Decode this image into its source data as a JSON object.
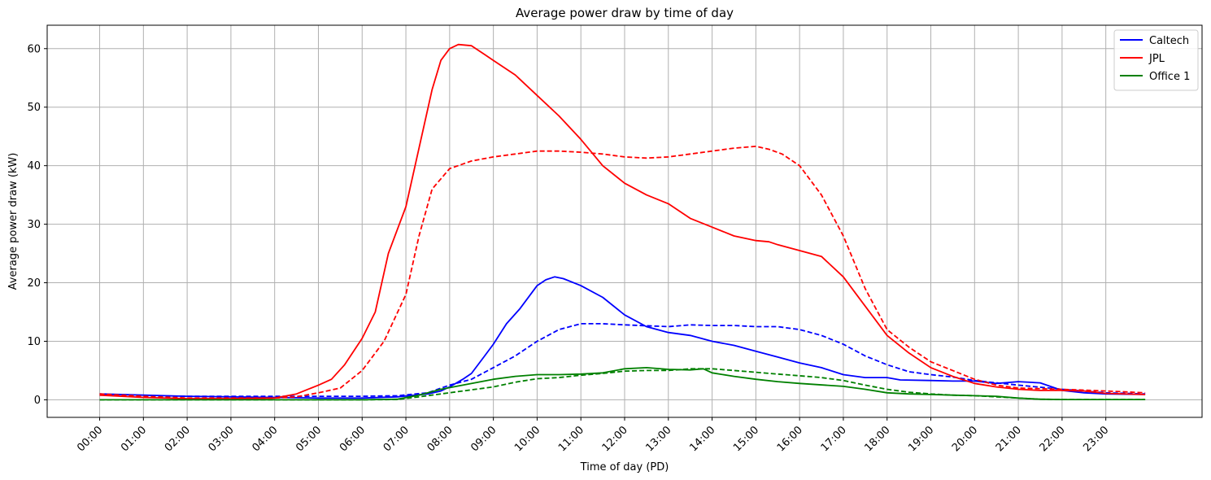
{
  "chart_data": {
    "type": "line",
    "title": "Average power draw by time of day",
    "xlabel": "Time of day (PD)",
    "ylabel": "Average power draw (kW)",
    "x_tick_labels": [
      "00:00",
      "01:00",
      "02:00",
      "03:00",
      "04:00",
      "05:00",
      "06:00",
      "07:00",
      "08:00",
      "09:00",
      "10:00",
      "11:00",
      "12:00",
      "13:00",
      "14:00",
      "15:00",
      "16:00",
      "17:00",
      "18:00",
      "19:00",
      "20:00",
      "21:00",
      "22:00",
      "23:00"
    ],
    "y_ticks": [
      0,
      10,
      20,
      30,
      40,
      50,
      60
    ],
    "xlim": [
      -1.2,
      25.2
    ],
    "ylim": [
      -3,
      64
    ],
    "grid": true,
    "legend_position": "top-right",
    "x_unit": "hours",
    "series": [
      {
        "name": "Caltech",
        "color": "#0000ff",
        "style": "solid",
        "x": [
          0,
          1,
          2,
          3,
          4,
          5,
          6,
          6.8,
          7.5,
          7.8,
          8,
          8.3,
          8.5,
          8.8,
          9,
          9.3,
          9.6,
          10,
          10.2,
          10.4,
          10.6,
          11,
          11.5,
          12,
          12.5,
          13,
          13.5,
          14,
          14.5,
          15,
          15.5,
          16,
          16.5,
          17,
          17.5,
          18,
          18.3,
          19,
          19.5,
          20,
          20.5,
          21,
          21.5,
          22,
          22.5,
          23,
          23.9
        ],
        "y": [
          1,
          0.8,
          0.6,
          0.5,
          0.4,
          0.3,
          0.3,
          0.5,
          1.0,
          1.5,
          2.2,
          3.5,
          4.5,
          7.5,
          9.5,
          13,
          15.5,
          19.5,
          20.5,
          21,
          20.7,
          19.5,
          17.5,
          14.5,
          12.5,
          11.5,
          11,
          10,
          9.3,
          8.3,
          7.3,
          6.3,
          5.5,
          4.3,
          3.8,
          3.8,
          3.4,
          3.3,
          3.2,
          3.2,
          2.8,
          3.1,
          2.9,
          1.6,
          1.2,
          1.0,
          0.9
        ]
      },
      {
        "name": "",
        "color": "#0000ff",
        "style": "dashed",
        "x": [
          0,
          1,
          2,
          3,
          4,
          5,
          6,
          6.8,
          7.5,
          8,
          8.5,
          9,
          9.5,
          10,
          10.5,
          11,
          11.5,
          12,
          13,
          13.5,
          14,
          14.5,
          15,
          15.5,
          16,
          16.5,
          17,
          17.5,
          18,
          18.5,
          19,
          19.5,
          20,
          21,
          22,
          23,
          23.9
        ],
        "y": [
          0.8,
          0.7,
          0.6,
          0.6,
          0.6,
          0.6,
          0.6,
          0.7,
          1.2,
          2.5,
          3.5,
          5.5,
          7.5,
          10,
          12,
          13,
          13,
          12.8,
          12.5,
          12.8,
          12.7,
          12.7,
          12.5,
          12.5,
          12,
          11,
          9.5,
          7.5,
          6,
          4.8,
          4.3,
          3.9,
          3.3,
          2.5,
          1.8,
          1.2,
          1.0
        ]
      },
      {
        "name": "JPL",
        "color": "#ff0000",
        "style": "solid",
        "x": [
          0,
          1,
          2,
          3,
          4,
          4.5,
          5,
          5.3,
          5.6,
          6,
          6.3,
          6.6,
          7,
          7.3,
          7.6,
          7.8,
          8,
          8.2,
          8.5,
          8.8,
          9,
          9.5,
          10,
          10.5,
          11,
          11.5,
          12,
          12.5,
          13,
          13.5,
          14,
          14.5,
          15,
          15.3,
          15.5,
          16,
          16.5,
          17,
          17.5,
          18,
          18.5,
          19,
          19.5,
          20,
          20.5,
          21,
          21.5,
          22,
          22.5,
          23,
          23.9
        ],
        "y": [
          0.8,
          0.4,
          0.2,
          0.2,
          0.3,
          1,
          2.5,
          3.5,
          6,
          10.5,
          15,
          25,
          33,
          43,
          53,
          58,
          60,
          60.7,
          60.5,
          59,
          58,
          55.5,
          52,
          48.5,
          44.5,
          40,
          37,
          35,
          33.5,
          31,
          29.5,
          28,
          27.2,
          27,
          26.5,
          25.5,
          24.5,
          21,
          16,
          11,
          8,
          5.5,
          4,
          2.8,
          2.2,
          1.8,
          1.6,
          1.6,
          1.5,
          1.1,
          0.9
        ]
      },
      {
        "name": "",
        "color": "#ff0000",
        "style": "dashed",
        "x": [
          0,
          1,
          2,
          3,
          4,
          4.5,
          5,
          5.5,
          6,
          6.5,
          7,
          7.3,
          7.6,
          8,
          8.5,
          9,
          9.5,
          10,
          10.5,
          11,
          11.5,
          12,
          12.5,
          13,
          13.5,
          14,
          14.5,
          15,
          15.3,
          15.6,
          16,
          16.5,
          17,
          17.5,
          18,
          18.5,
          19,
          19.5,
          20,
          20.5,
          21,
          22,
          23,
          23.9
        ],
        "y": [
          1,
          0.6,
          0.3,
          0.3,
          0.3,
          0.5,
          1.2,
          2,
          5,
          10,
          18,
          28,
          36,
          39.5,
          40.8,
          41.5,
          42,
          42.5,
          42.5,
          42.3,
          42,
          41.5,
          41.3,
          41.5,
          42,
          42.5,
          43,
          43.3,
          42.8,
          42,
          40,
          35,
          28,
          19,
          12,
          9,
          6.5,
          5,
          3.5,
          2.5,
          2,
          1.8,
          1.5,
          1.2
        ]
      },
      {
        "name": "Office 1",
        "color": "#008000",
        "style": "solid",
        "x": [
          0,
          1,
          2,
          3,
          4,
          5,
          6,
          6.8,
          7.3,
          7.8,
          8.3,
          9,
          9.5,
          10,
          10.5,
          11,
          11.5,
          12,
          12.5,
          13,
          13.5,
          13.8,
          14,
          14.5,
          15,
          15.5,
          16,
          17,
          17.5,
          18,
          18.5,
          19,
          19.5,
          20,
          20.5,
          21,
          21.5,
          22,
          22.5,
          23,
          23.9
        ],
        "y": [
          0,
          0,
          0,
          0,
          0,
          0,
          0,
          0.1,
          0.8,
          1.8,
          2.5,
          3.5,
          4.0,
          4.3,
          4.3,
          4.4,
          4.6,
          5.3,
          5.5,
          5.2,
          5.1,
          5.3,
          4.6,
          4.0,
          3.5,
          3.1,
          2.8,
          2.3,
          1.8,
          1.2,
          1.0,
          0.9,
          0.8,
          0.7,
          0.6,
          0.3,
          0.1,
          0.05,
          0.05,
          0.05,
          0.05
        ]
      },
      {
        "name": "",
        "color": "#008000",
        "style": "dashed",
        "x": [
          0,
          1,
          2,
          3,
          4,
          5,
          6,
          6.8,
          7.3,
          7.8,
          8.3,
          9,
          9.5,
          10,
          10.5,
          11,
          11.5,
          12,
          12.5,
          13,
          13.5,
          14,
          14.5,
          15,
          15.5,
          16,
          16.5,
          17,
          17.5,
          18,
          18.5,
          19,
          19.5,
          20,
          20.5,
          21,
          21.5,
          22,
          22.5,
          23,
          23.9
        ],
        "y": [
          0,
          0,
          0,
          0,
          0,
          0,
          0,
          0.05,
          0.5,
          1.0,
          1.5,
          2.2,
          3.0,
          3.6,
          3.8,
          4.2,
          4.5,
          4.9,
          5.0,
          5.0,
          5.3,
          5.3,
          5.0,
          4.7,
          4.4,
          4.1,
          3.8,
          3.3,
          2.5,
          1.8,
          1.3,
          1.0,
          0.8,
          0.7,
          0.5,
          0.3,
          0.1,
          0.05,
          0.05,
          0.05,
          0.05
        ]
      }
    ]
  }
}
